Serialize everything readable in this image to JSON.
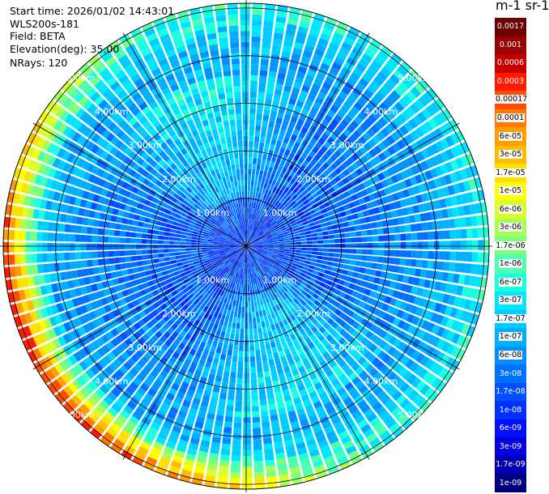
{
  "header": {
    "start_time": "Start time: 2026/01/02 14:43:01",
    "instrument": "WLS200s-181",
    "field": "Field: BETA",
    "elevation": "Elevation(deg): 35.00",
    "nrays": "NRays: 120"
  },
  "colorbar": {
    "title": "m-1 sr-1",
    "labels": [
      "0.0017",
      "0.001",
      "0.0006",
      "0.0003",
      "0.00017",
      "0.0001",
      "6e-05",
      "3e-05",
      "1.7e-05",
      "1e-05",
      "6e-06",
      "3e-06",
      "1.7e-06",
      "1e-06",
      "6e-07",
      "3e-07",
      "1.7e-07",
      "1e-07",
      "6e-08",
      "3e-08",
      "1.7e-08",
      "1e-08",
      "6e-09",
      "3e-09",
      "1.7e-09",
      "1e-09"
    ],
    "colors": [
      "#6b0000",
      "#9a0000",
      "#c80000",
      "#ff1a00",
      "#ff4c00",
      "#ff7a00",
      "#ff9c00",
      "#ffbb00",
      "#ffe000",
      "#ffff00",
      "#d8ff2a",
      "#a6ff55",
      "#7dff7d",
      "#4dffb0",
      "#1affe0",
      "#00e6ff",
      "#00ccff",
      "#00b0ff",
      "#0090ff",
      "#0070ff",
      "#0050ff",
      "#0030ff",
      "#0010ff",
      "#0000e0",
      "#0000b0",
      "#000080"
    ]
  },
  "chart_data": {
    "type": "heatmap",
    "projection": "polar-ppi",
    "title": "",
    "n_rays": 120,
    "elevation_deg": 35.0,
    "range_rings_km": [
      1,
      2,
      3,
      4,
      5
    ],
    "ring_labels": [
      "1.00km",
      "2.00km",
      "3.00km",
      "4.00km",
      "5.00km"
    ],
    "max_range_km": 5.1,
    "spokes_deg": [
      0,
      30,
      60,
      90,
      120,
      150,
      180,
      210,
      240,
      270,
      300,
      330
    ],
    "field": "BETA",
    "units": "m-1 sr-1",
    "color_scale": "log",
    "value_range": [
      1e-09,
      0.0017
    ]
  }
}
